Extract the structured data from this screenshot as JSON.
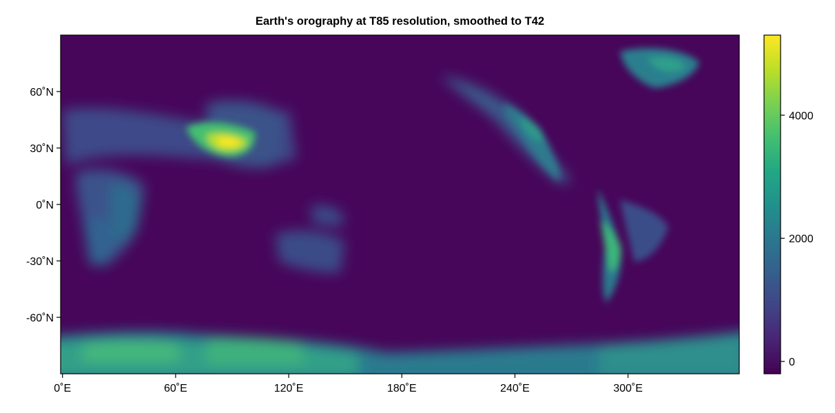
{
  "title": "Earth's orography at T85 resolution, smoothed to T42",
  "x_axis": {
    "ticks": [
      {
        "value": 0,
        "label": "0˚E"
      },
      {
        "value": 60,
        "label": "60˚E"
      },
      {
        "value": 120,
        "label": "120˚E"
      },
      {
        "value": 180,
        "label": "180˚E"
      },
      {
        "value": 240,
        "label": "240˚E"
      },
      {
        "value": 300,
        "label": "300˚E"
      }
    ],
    "range": [
      -1,
      359
    ]
  },
  "y_axis": {
    "ticks": [
      {
        "value": 60,
        "label": "60˚N"
      },
      {
        "value": 30,
        "label": "30˚N"
      },
      {
        "value": 0,
        "label": "0˚N"
      },
      {
        "value": -30,
        "label": "-30˚N"
      },
      {
        "value": -60,
        "label": "-60˚N"
      }
    ],
    "range": [
      -90,
      90
    ]
  },
  "colorbar": {
    "colormap": "viridis",
    "range": [
      -200,
      5300
    ],
    "ticks": [
      {
        "value": 0,
        "label": "0"
      },
      {
        "value": 2000,
        "label": "2000"
      },
      {
        "value": 4000,
        "label": "4000"
      }
    ]
  },
  "field_features": {
    "background_value": -150,
    "features": [
      {
        "region": "Antarctica",
        "lon": [
          0,
          358
        ],
        "lat": [
          -90,
          -70
        ],
        "approx_value": 2600
      },
      {
        "region": "Tibetan Plateau",
        "lon": [
          86
        ],
        "lat": [
          32
        ],
        "approx_value": 5200
      },
      {
        "region": "Greenland",
        "lon": [
          320
        ],
        "lat": [
          75
        ],
        "approx_value": 2300
      },
      {
        "region": "Andes",
        "lon": [
          290
        ],
        "lat": [
          -20
        ],
        "approx_value": 3000
      },
      {
        "region": "Rocky Mountains",
        "lon": [
          250
        ],
        "lat": [
          40
        ],
        "approx_value": 2000
      },
      {
        "region": "East Africa",
        "lon": [
          38
        ],
        "lat": [
          5
        ],
        "approx_value": 1700
      },
      {
        "region": "Southern Africa",
        "lon": [
          25
        ],
        "lat": [
          -25
        ],
        "approx_value": 1300
      }
    ]
  },
  "colors": {
    "axis": "#000000",
    "background": "#ffffff"
  }
}
